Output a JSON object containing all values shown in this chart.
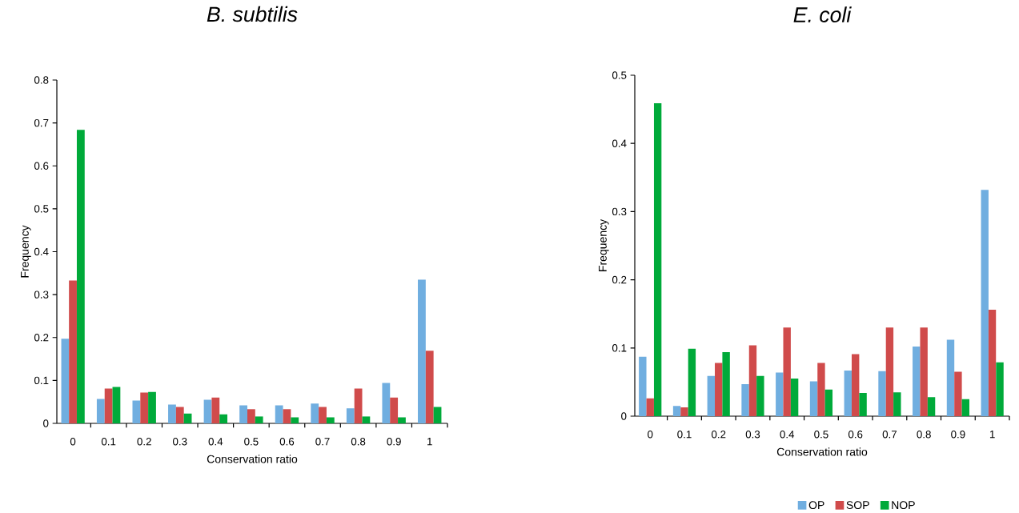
{
  "chart_data": [
    {
      "type": "bar",
      "title": "B. subtilis",
      "xlabel": "Conservation ratio",
      "ylabel": "Frequency",
      "categories": [
        "0",
        "0.1",
        "0.2",
        "0.3",
        "0.4",
        "0.5",
        "0.6",
        "0.7",
        "0.8",
        "0.9",
        "1"
      ],
      "series": [
        {
          "color": "#70aee0",
          "values": [
            0.197,
            0.057,
            0.053,
            0.044,
            0.055,
            0.042,
            0.042,
            0.046,
            0.035,
            0.094,
            0.335
          ]
        },
        {
          "color": "#d04b4b",
          "values": [
            0.333,
            0.081,
            0.072,
            0.038,
            0.06,
            0.033,
            0.033,
            0.038,
            0.081,
            0.06,
            0.169
          ]
        },
        {
          "color": "#00aa3a",
          "values": [
            0.684,
            0.085,
            0.073,
            0.023,
            0.021,
            0.016,
            0.014,
            0.014,
            0.016,
            0.014,
            0.038
          ]
        }
      ],
      "ylim": [
        0,
        0.8
      ],
      "yticks": [
        0,
        0.1,
        0.2,
        0.3,
        0.4,
        0.5,
        0.6,
        0.7,
        0.8
      ],
      "grid": false,
      "legend": false
    },
    {
      "type": "bar",
      "title": "E. coli",
      "xlabel": "Conservation ratio",
      "ylabel": "Frequency",
      "categories": [
        "0",
        "0.1",
        "0.2",
        "0.3",
        "0.4",
        "0.5",
        "0.6",
        "0.7",
        "0.8",
        "0.9",
        "1"
      ],
      "series": [
        {
          "name": "OP",
          "color": "#70aee0",
          "values": [
            0.087,
            0.015,
            0.059,
            0.047,
            0.064,
            0.051,
            0.067,
            0.066,
            0.102,
            0.112,
            0.332
          ]
        },
        {
          "name": "SOP",
          "color": "#d04b4b",
          "values": [
            0.026,
            0.013,
            0.078,
            0.104,
            0.13,
            0.078,
            0.091,
            0.13,
            0.13,
            0.065,
            0.156
          ]
        },
        {
          "name": "NOP",
          "color": "#00aa3a",
          "values": [
            0.459,
            0.099,
            0.094,
            0.059,
            0.055,
            0.039,
            0.034,
            0.035,
            0.028,
            0.025,
            0.079
          ]
        }
      ],
      "ylim": [
        0,
        0.5
      ],
      "yticks": [
        0,
        0.1,
        0.2,
        0.3,
        0.4,
        0.5
      ],
      "grid": false,
      "legend": "bottom"
    }
  ]
}
